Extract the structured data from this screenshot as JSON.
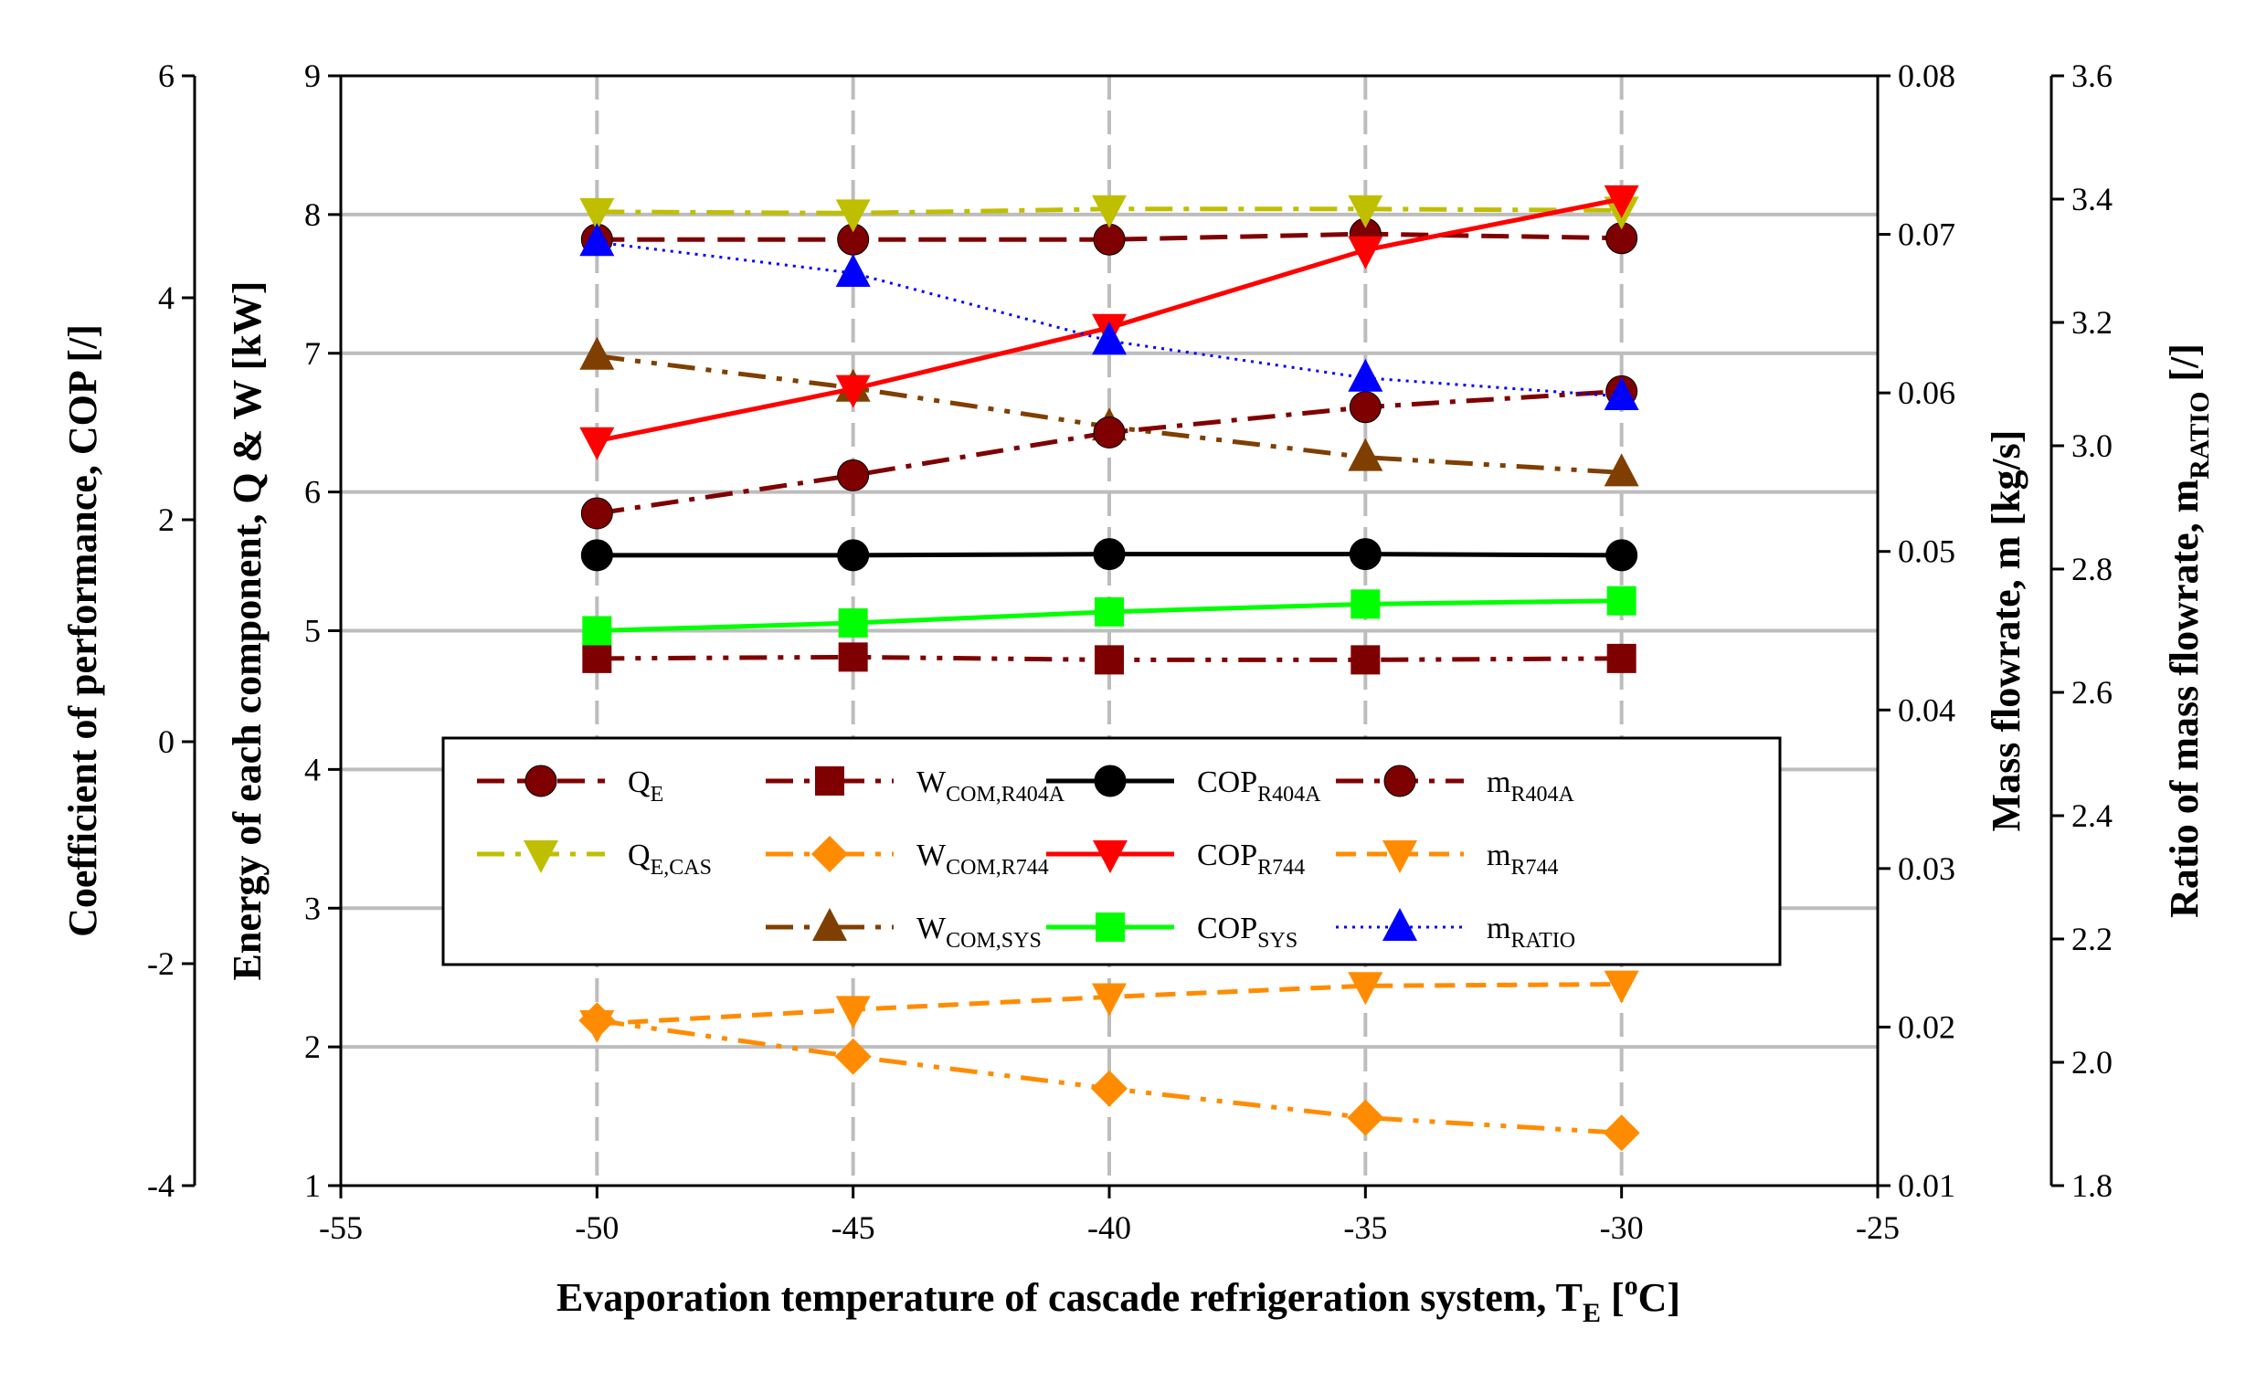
{
  "chart_data": {
    "type": "line",
    "x": [
      -50,
      -45,
      -40,
      -35,
      -30
    ],
    "xlim": [
      -55,
      -25
    ],
    "xticks": [
      "-55",
      "-50",
      "-45",
      "-40",
      "-35",
      "-30",
      "-25"
    ],
    "xlabel": {
      "main": "Evaporation temperature of cascade refrigeration system, T",
      "sub": "E",
      "tail_a": " [",
      "sup": "o",
      "tail_b": "C]"
    },
    "axes": {
      "cop": {
        "label": "Coefficient of performance, COP [/]",
        "lim": [
          -4,
          6
        ],
        "ticks": [
          "6",
          "4",
          "2",
          "0",
          "-2",
          "-4"
        ]
      },
      "energy": {
        "label": "Energy of each component, Q & W [kW]",
        "lim": [
          1,
          9
        ],
        "ticks": [
          "9",
          "8",
          "7",
          "6",
          "5",
          "4",
          "3",
          "2",
          "1"
        ]
      },
      "mass": {
        "label": "Mass flowrate, m [kg/s]",
        "lim": [
          0.01,
          0.08
        ],
        "ticks": [
          "0.08",
          "0.07",
          "0.06",
          "0.05",
          "0.04",
          "0.03",
          "0.02",
          "0.01"
        ]
      },
      "ratio": {
        "label_main": "Ratio of mass flowrate, m",
        "label_sub": "RATIO",
        "label_tail": " [/]",
        "lim": [
          1.8,
          3.6
        ],
        "ticks": [
          "3.6",
          "3.4",
          "3.2",
          "3.0",
          "2.8",
          "2.6",
          "2.4",
          "2.2",
          "2.0",
          "1.8"
        ]
      }
    },
    "series": [
      {
        "key": "qe",
        "name": "Q",
        "sub": "E",
        "axis": "energy",
        "values": [
          7.82,
          7.82,
          7.82,
          7.86,
          7.83
        ]
      },
      {
        "key": "qecas",
        "name": "Q",
        "sub": "E,CAS",
        "axis": "energy",
        "values": [
          8.02,
          8.01,
          8.04,
          8.04,
          8.03
        ]
      },
      {
        "key": "wr404a",
        "name": "W",
        "sub": "COM,R404A",
        "axis": "energy",
        "values": [
          4.8,
          4.81,
          4.79,
          4.79,
          4.8
        ]
      },
      {
        "key": "wr744",
        "name": "W",
        "sub": "COM,R744",
        "axis": "energy",
        "values": [
          2.19,
          1.93,
          1.7,
          1.49,
          1.38
        ]
      },
      {
        "key": "wsys",
        "name": "W",
        "sub": "COM,SYS",
        "axis": "energy",
        "values": [
          6.98,
          6.75,
          6.47,
          6.25,
          6.14
        ]
      },
      {
        "key": "copr404a",
        "name": "COP",
        "sub": "R404A",
        "axis": "cop",
        "values": [
          1.68,
          1.68,
          1.69,
          1.69,
          1.68
        ]
      },
      {
        "key": "copr744",
        "name": "COP",
        "sub": "R744",
        "axis": "cop",
        "values": [
          2.71,
          3.18,
          3.73,
          4.43,
          4.89
        ]
      },
      {
        "key": "copsys",
        "name": "COP",
        "sub": "SYS",
        "axis": "cop",
        "values": [
          1.0,
          1.07,
          1.17,
          1.24,
          1.27
        ]
      },
      {
        "key": "mr404a",
        "name": "m",
        "sub": "R404A",
        "axis": "mass",
        "values": [
          0.0524,
          0.0548,
          0.0575,
          0.0591,
          0.0601
        ]
      },
      {
        "key": "mr744",
        "name": "m",
        "sub": "R744",
        "axis": "mass",
        "values": [
          0.0202,
          0.0211,
          0.0219,
          0.0226,
          0.0227
        ]
      },
      {
        "key": "mratio",
        "name": "m",
        "sub": "RATIO",
        "axis": "ratio",
        "values": [
          3.33,
          3.28,
          3.17,
          3.11,
          3.08
        ]
      }
    ],
    "colors": {
      "qe": "#7f0000",
      "qecas": "#bfbf00",
      "wr404a": "#7f0000",
      "wr744": "#ff8c00",
      "wsys": "#7f3f00",
      "copr404a": "#000000",
      "copr744": "#ff0000",
      "copsys": "#00ff00",
      "mr404a": "#7f0000",
      "mr744": "#ff8c00",
      "mratio": "#0000ff"
    },
    "legend_position": "center",
    "grid": true
  }
}
